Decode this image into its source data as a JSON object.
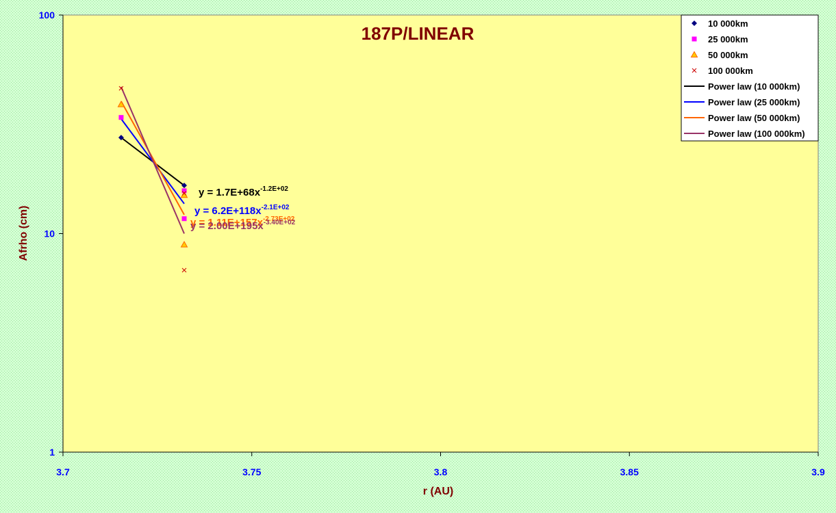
{
  "chart_data": {
    "type": "scatter",
    "title": "187P/LINEAR",
    "x_label": "r (AU)",
    "y_label": "Afrho (cm)",
    "xlim": [
      3.7,
      3.9
    ],
    "xticks": [
      3.7,
      3.75,
      3.8,
      3.85,
      3.9
    ],
    "ylim": [
      1,
      100
    ],
    "yticks": [
      1,
      10,
      100
    ],
    "y_scale": "log",
    "legend": "upper right",
    "series": [
      {
        "name": "10 000km",
        "kind": "marker",
        "marker": "diamond",
        "color": "#000080",
        "x": [
          3.7154,
          3.7321
        ],
        "values": [
          27.5,
          16.6
        ]
      },
      {
        "name": "25 000km",
        "kind": "marker",
        "marker": "square",
        "color": "#ff00ff",
        "x": [
          3.7154,
          3.7321,
          3.7321
        ],
        "values": [
          34,
          15.7,
          11.7
        ]
      },
      {
        "name": "50 000km",
        "kind": "marker",
        "marker": "triangle",
        "color": "#ff6600",
        "x": [
          3.7154,
          3.7321,
          3.7321
        ],
        "values": [
          39,
          15,
          8.9
        ]
      },
      {
        "name": "100 000km",
        "kind": "marker",
        "marker": "x",
        "color": "#cc0000",
        "x": [
          3.7154,
          3.7321,
          3.7321
        ],
        "values": [
          46.2,
          15.3,
          6.8
        ]
      },
      {
        "name": "Power law (10 000km)",
        "kind": "line",
        "color": "#000000",
        "x": [
          3.7154,
          3.7321
        ],
        "values": [
          27.5,
          16.6
        ]
      },
      {
        "name": "Power law (25 000km)",
        "kind": "line",
        "color": "#0000ff",
        "x": [
          3.7154,
          3.7321
        ],
        "values": [
          33.5,
          13.7
        ]
      },
      {
        "name": "Power law (50 000km)",
        "kind": "line",
        "color": "#ff6600",
        "x": [
          3.7154,
          3.7321
        ],
        "values": [
          40.3,
          12.2
        ]
      },
      {
        "name": "Power law (100 000km)",
        "kind": "line",
        "color": "#993366",
        "x": [
          3.7154,
          3.7321
        ],
        "values": [
          46.9,
          10
        ]
      }
    ],
    "annotations": [
      {
        "text": "y = 1.7E+68x",
        "superscript": "-1.2E+02",
        "color": "#000000"
      },
      {
        "text": "y = 6.2E+118x",
        "superscript": "-2.1E+02",
        "color": "#0000ff"
      },
      {
        "text": "y = 1.11E+157x",
        "superscript": "-2.73E+02",
        "color": "#ff6600"
      },
      {
        "text": "y = 2.00E+195x",
        "superscript": "-3.40E+02",
        "color": "#993366"
      }
    ]
  }
}
